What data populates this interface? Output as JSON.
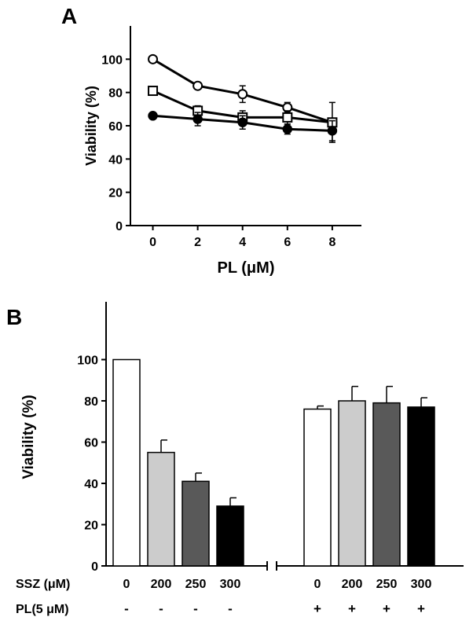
{
  "chart_data": [
    {
      "panel": "A",
      "type": "line",
      "xlabel": "PL (μM)",
      "ylabel": "Viability (%)",
      "x": [
        0,
        2,
        4,
        6,
        8
      ],
      "x_ticks": [
        "0",
        "2",
        "4",
        "6",
        "8"
      ],
      "y_ticks": [
        "0",
        "20",
        "40",
        "60",
        "80",
        "100"
      ],
      "xlim": [
        -1,
        9.3
      ],
      "ylim": [
        0,
        120
      ],
      "series": [
        {
          "marker": "open-circle",
          "values": [
            100,
            84,
            79,
            71,
            62
          ],
          "errors": [
            0,
            0,
            5,
            3,
            0
          ]
        },
        {
          "marker": "open-square",
          "values": [
            81,
            69,
            65,
            65,
            62
          ],
          "errors": [
            0,
            3,
            4,
            4,
            12
          ]
        },
        {
          "marker": "filled-circle",
          "values": [
            66,
            64,
            62,
            58,
            57
          ],
          "errors": [
            0,
            4,
            4,
            3,
            6
          ]
        }
      ],
      "grid": false
    },
    {
      "panel": "B",
      "type": "bar",
      "ylabel": "Viability (%)",
      "y_ticks": [
        "0",
        "20",
        "40",
        "60",
        "80",
        "100"
      ],
      "ylim": [
        0,
        128
      ],
      "row_labels": [
        "SSZ (μM)",
        "PL(5 μM)"
      ],
      "categories": [
        "0",
        "200",
        "250",
        "300",
        "0",
        "200",
        "250",
        "300"
      ],
      "pl_signs": [
        "-",
        "-",
        "-",
        "-",
        "+",
        "+",
        "+",
        "+"
      ],
      "values": [
        100,
        55,
        41,
        29,
        76,
        80,
        79,
        77
      ],
      "errors": [
        0,
        6,
        4,
        4,
        1.5,
        7,
        8,
        4.5
      ],
      "fills": [
        "#ffffff",
        "#cccccc",
        "#595959",
        "#000000",
        "#ffffff",
        "#cccccc",
        "#595959",
        "#000000"
      ],
      "axis_break": true,
      "grid": false
    }
  ]
}
